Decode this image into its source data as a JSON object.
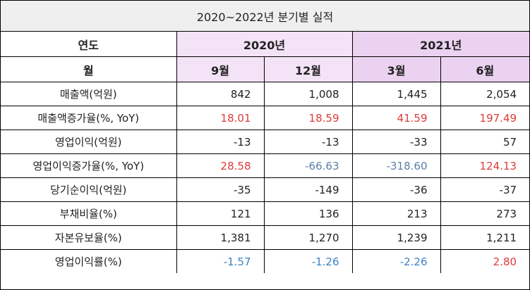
{
  "title": "2020~2022년 분기별 실적",
  "header": {
    "year_label": "연도",
    "month_label": "월",
    "years": [
      "2020년",
      "2021년"
    ],
    "months": [
      "9월",
      "12월",
      "3월",
      "6월"
    ]
  },
  "rows": [
    {
      "label": "매출액(억원)",
      "values": [
        "842",
        "1,008",
        "1,445",
        "2,054"
      ]
    },
    {
      "label": "매출액증가율(%, YoY)",
      "values": [
        "18.01",
        "18.59",
        "41.59",
        "197.49"
      ]
    },
    {
      "label": "영업이익(억원)",
      "values": [
        "-13",
        "-13",
        "-33",
        "57"
      ]
    },
    {
      "label": "영업이익증가율(%, YoY)",
      "values": [
        "28.58",
        "-66.63",
        "-318.60",
        "124.13"
      ]
    },
    {
      "label": "당기순이익(억원)",
      "values": [
        "-35",
        "-149",
        "-36",
        "-37"
      ]
    },
    {
      "label": "부채비율(%)",
      "values": [
        "121",
        "136",
        "213",
        "273"
      ]
    },
    {
      "label": "자본유보율(%)",
      "values": [
        "1,381",
        "1,270",
        "1,239",
        "1,211"
      ]
    },
    {
      "label": "영업이익률(%)",
      "values": [
        "-1.57",
        "-1.26",
        "-2.26",
        "2.80"
      ]
    }
  ],
  "colors": {
    "positive": "#e03a3a",
    "negative": "#3b82c4",
    "negative_alt": "#5b7fa8",
    "year_2020_bg": "#f4e3f6",
    "year_2021_bg": "#ecd2f1",
    "title_bg": "#efefef"
  }
}
